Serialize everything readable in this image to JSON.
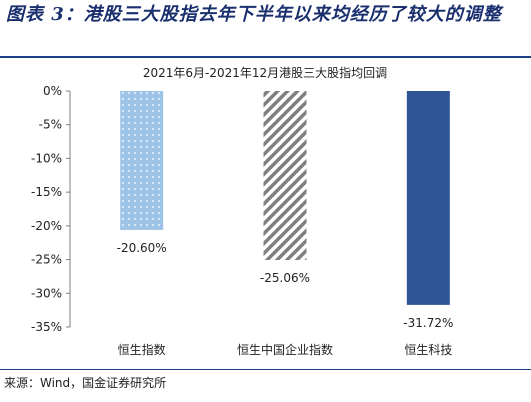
{
  "figure": {
    "title": "图表 3：港股三大股指去年下半年以来均经历了较大的调整",
    "source": "来源：Wind，国金证券研究所"
  },
  "colors": {
    "rule": "#1f3f86",
    "series": [
      "#9dc3e6",
      "#7f7f7f",
      "#2e5597"
    ]
  },
  "chart_data": {
    "type": "bar",
    "title": "2021年6月-2021年12月港股三大股指均回调",
    "categories": [
      "恒生指数",
      "恒生中国企业指数",
      "恒生科技"
    ],
    "values": [
      -20.6,
      -25.06,
      -31.72
    ],
    "value_labels": [
      "-20.60%",
      "-25.06%",
      "-31.72%"
    ],
    "bar_styles": [
      "dotted",
      "hatched",
      "solid"
    ],
    "ylim": [
      -35,
      0
    ],
    "yticks": [
      0,
      -5,
      -10,
      -15,
      -20,
      -25,
      -30,
      -35
    ],
    "ytick_labels": [
      "0%",
      "-5%",
      "-10%",
      "-15%",
      "-20%",
      "-25%",
      "-30%",
      "-35%"
    ],
    "grid": false,
    "legend": false
  }
}
